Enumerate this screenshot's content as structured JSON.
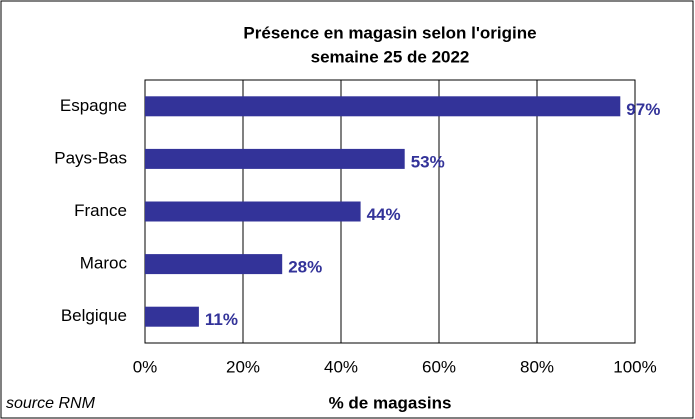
{
  "chart_data": {
    "type": "barh",
    "title": [
      "Présence en magasin selon l'origine",
      "semaine 25 de 2022"
    ],
    "categories": [
      "Espagne",
      "Pays-Bas",
      "France",
      "Maroc",
      "Belgique"
    ],
    "values": [
      97,
      53,
      44,
      28,
      11
    ],
    "value_labels": [
      "97%",
      "53%",
      "44%",
      "28%",
      "11%"
    ],
    "color": "#333399",
    "xlim": [
      0,
      100
    ],
    "xticks": [
      {
        "value": 0,
        "label": "0%"
      },
      {
        "value": 20,
        "label": "20%"
      },
      {
        "value": 40,
        "label": "40%"
      },
      {
        "value": 60,
        "label": "60%"
      },
      {
        "value": 80,
        "label": "80%"
      },
      {
        "value": 100,
        "label": "100%"
      }
    ],
    "xlabel": "% de magasins",
    "source": "source RNM",
    "grid": true
  }
}
